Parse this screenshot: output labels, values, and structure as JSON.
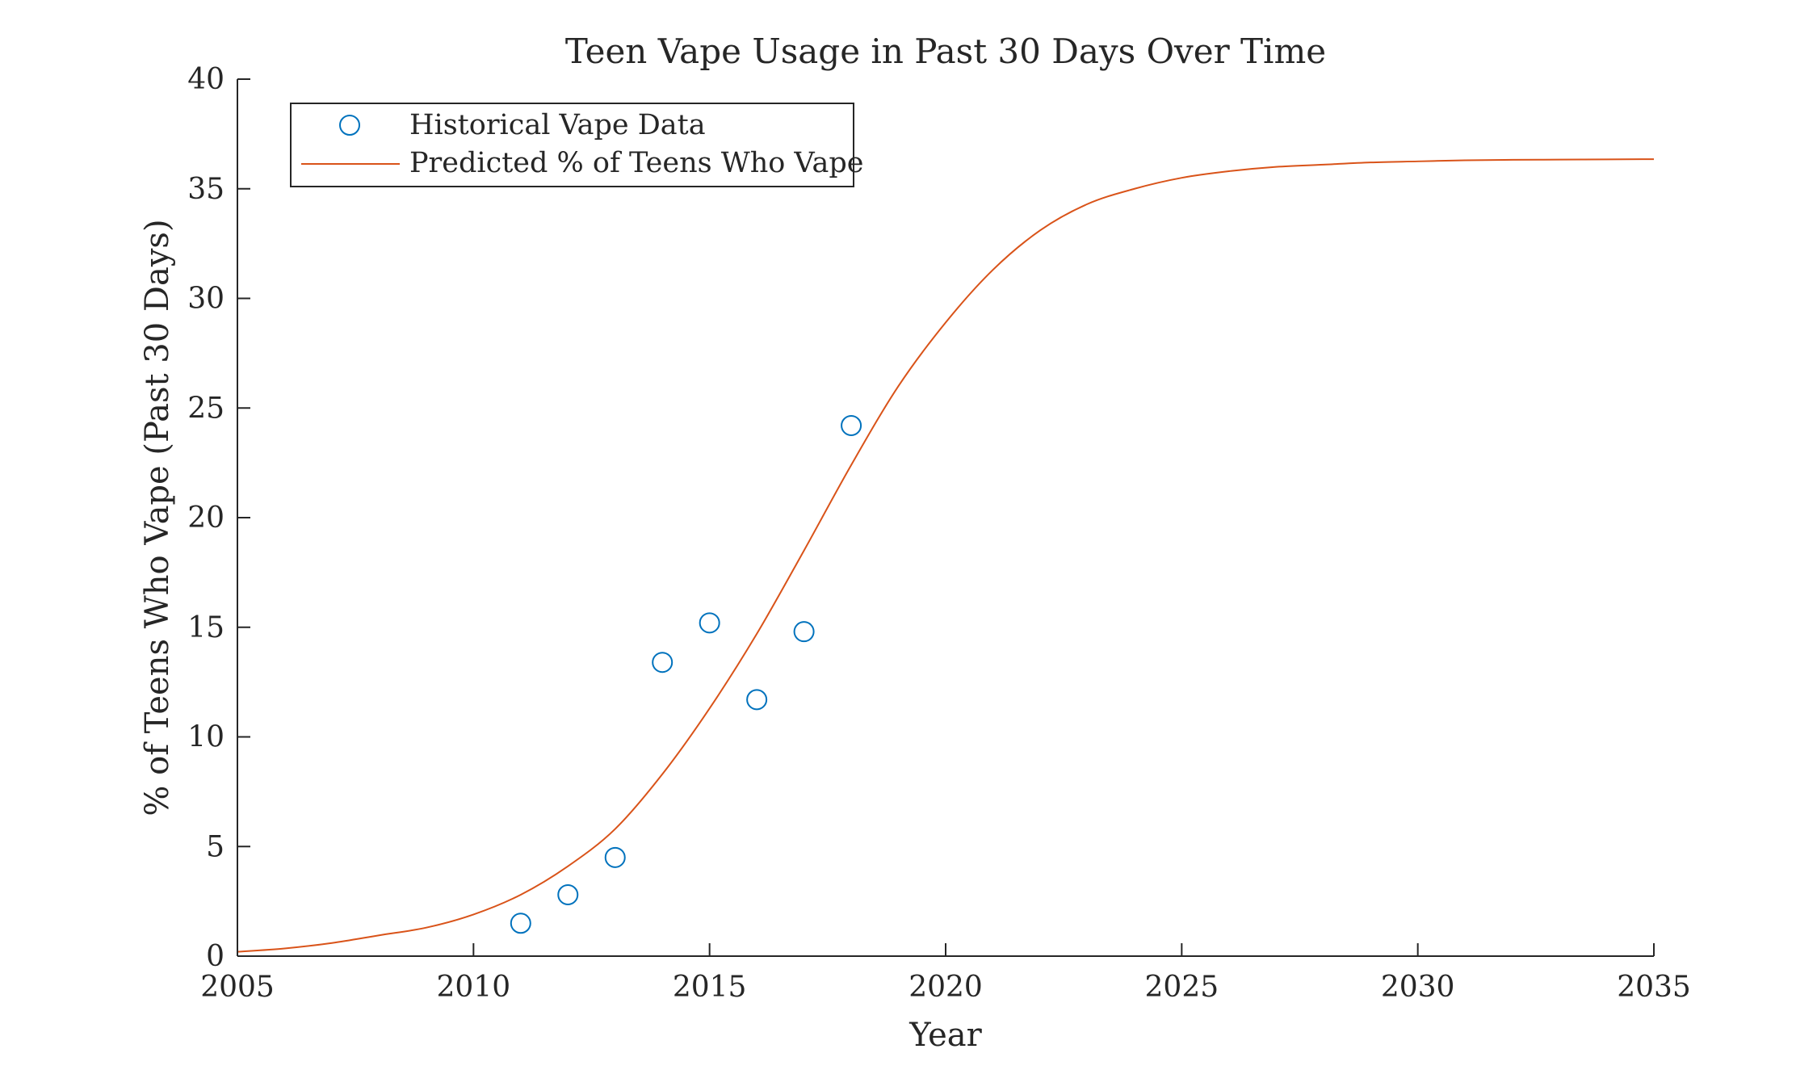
{
  "chart_data": {
    "type": "line",
    "title": "Teen Vape Usage in Past 30 Days Over Time",
    "xlabel": "Year",
    "ylabel": "% of Teens Who Vape (Past 30 Days)",
    "xlim": [
      2005,
      2035
    ],
    "ylim": [
      0,
      40
    ],
    "xticks": [
      2005,
      2010,
      2015,
      2020,
      2025,
      2030,
      2035
    ],
    "yticks": [
      0,
      5,
      10,
      15,
      20,
      25,
      30,
      35,
      40
    ],
    "grid": false,
    "legend_position": "top-left",
    "series": [
      {
        "name": "Historical Vape Data",
        "kind": "scatter",
        "marker": "circle-open",
        "color": "#0072BD",
        "x": [
          2011,
          2012,
          2013,
          2014,
          2015,
          2016,
          2017,
          2018
        ],
        "y": [
          1.5,
          2.8,
          4.5,
          13.4,
          15.2,
          11.7,
          14.8,
          24.2
        ]
      },
      {
        "name": "Predicted % of Teens Who Vape",
        "kind": "line",
        "color": "#D95319",
        "x": [
          2005,
          2006,
          2007,
          2008,
          2009,
          2010,
          2011,
          2012,
          2013,
          2014,
          2015,
          2016,
          2017,
          2018,
          2019,
          2020,
          2021,
          2022,
          2023,
          2024,
          2025,
          2026,
          2027,
          2028,
          2029,
          2030,
          2031,
          2032,
          2033,
          2034,
          2035
        ],
        "y": [
          0.2,
          0.35,
          0.6,
          0.95,
          1.3,
          1.9,
          2.8,
          4.1,
          5.8,
          8.3,
          11.3,
          14.7,
          18.5,
          22.4,
          26.0,
          28.9,
          31.3,
          33.1,
          34.3,
          35.0,
          35.5,
          35.8,
          36.0,
          36.1,
          36.2,
          36.25,
          36.3,
          36.32,
          36.33,
          36.34,
          36.35
        ]
      }
    ]
  }
}
